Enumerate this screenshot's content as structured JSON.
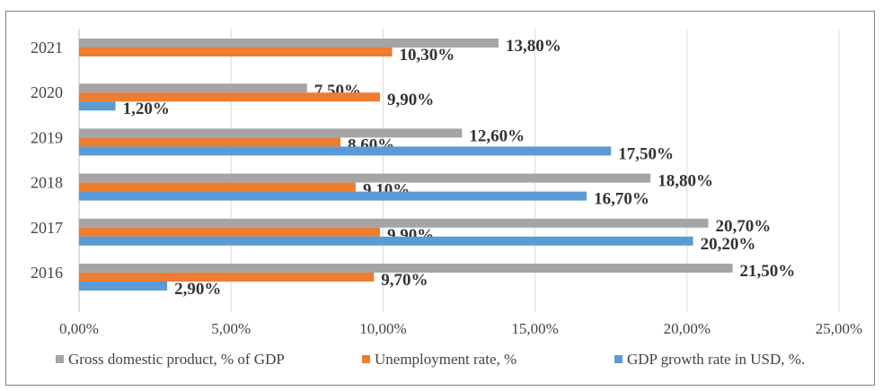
{
  "chart_data": {
    "type": "bar",
    "orientation": "horizontal",
    "categories": [
      "2016",
      "2017",
      "2018",
      "2019",
      "2020",
      "2021"
    ],
    "series": [
      {
        "name": "Gross domestic product, % of GDP",
        "color": "#a5a5a5",
        "values": [
          21.5,
          20.7,
          18.8,
          12.6,
          7.5,
          13.8
        ],
        "labels": [
          "21,50%",
          "20,70%",
          "18,80%",
          "12,60%",
          "7,50%",
          "13,80%"
        ]
      },
      {
        "name": "Unemployment rate, %",
        "color": "#ed7d31",
        "values": [
          9.7,
          9.9,
          9.1,
          8.6,
          9.9,
          10.3
        ],
        "labels": [
          "9,70%",
          "9,90%",
          "9,10%",
          "8,60%",
          "9,90%",
          "10,30%"
        ]
      },
      {
        "name": "GDP growth rate in USD, %.",
        "color": "#5b9bd5",
        "values": [
          2.9,
          20.2,
          16.7,
          17.5,
          1.2,
          null
        ],
        "labels": [
          "2,90%",
          "20,20%",
          "16,70%",
          "17,50%",
          "1,20%",
          null
        ]
      }
    ],
    "x_ticks": [
      "0,00%",
      "5,00%",
      "10,00%",
      "15,00%",
      "20,00%",
      "25,00%"
    ],
    "xlim": [
      0,
      25
    ],
    "grid": true,
    "legend_position": "bottom"
  }
}
